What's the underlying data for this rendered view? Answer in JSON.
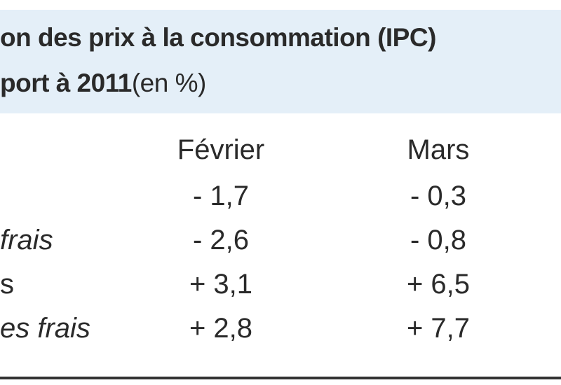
{
  "header": {
    "line1": "on des prix à la consommation (IPC)",
    "line2_bold": "port à 2011",
    "line2_rest": "(en %)"
  },
  "table": {
    "columns": [
      "Février",
      "Mars"
    ],
    "rows": [
      {
        "values": [
          "- 1,7",
          "- 0,3"
        ]
      },
      {
        "label": "frais",
        "values": [
          "- 2,6",
          "- 0,8"
        ]
      },
      {
        "label": "s",
        "values": [
          "+ 3,1",
          "+ 6,5"
        ]
      },
      {
        "label": "es frais",
        "values": [
          "+ 2,8",
          "+ 7,7"
        ]
      }
    ]
  }
}
